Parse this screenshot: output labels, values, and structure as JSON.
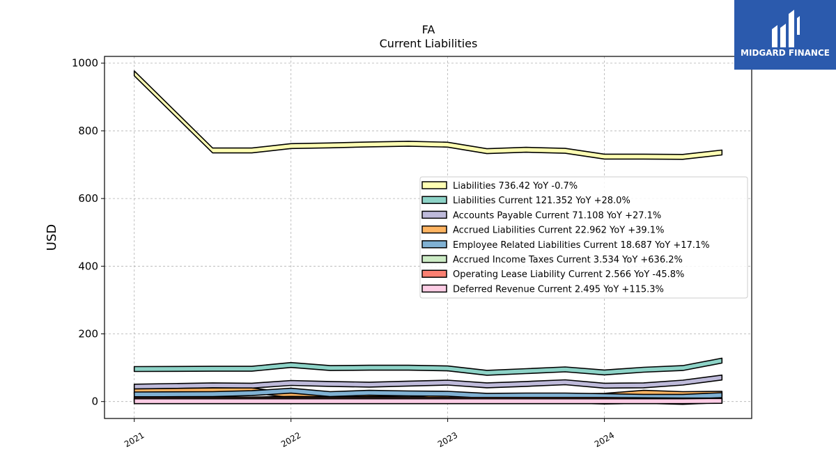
{
  "logo": {
    "text": "MIDGARD FINANCE"
  },
  "chart_data": {
    "type": "area",
    "title": "FA",
    "subtitle": "Current  Liabilities",
    "ylabel": "USD",
    "xlabel": "",
    "ylim": [
      -50,
      1020
    ],
    "xlim": [
      2020.81,
      2024.94
    ],
    "yticks": [
      0,
      200,
      400,
      600,
      800,
      1000
    ],
    "xticks": [
      {
        "value": 2021.0,
        "label": "2021"
      },
      {
        "value": 2022.0,
        "label": "2022"
      },
      {
        "value": 2023.0,
        "label": "2023"
      },
      {
        "value": 2024.0,
        "label": "2024"
      }
    ],
    "grid": true,
    "legend_placement": "center-right",
    "x": [
      2021.0,
      2021.5,
      2021.75,
      2022.0,
      2022.25,
      2022.5,
      2022.75,
      2023.0,
      2023.25,
      2023.5,
      2023.75,
      2024.0,
      2024.25,
      2024.5,
      2024.75
    ],
    "series": [
      {
        "name": "Liabilities",
        "legend": "Liabilities  736.42 YoY -0.7%",
        "color": "#ffffb3",
        "values": [
          970,
          742,
          742,
          755,
          757,
          760,
          762,
          759,
          740,
          744,
          741,
          724,
          724,
          723,
          736
        ]
      },
      {
        "name": "Liabilities Current",
        "legend": "Liabilities Current  121.352 YoY +28.0%",
        "color": "#8dd3c7",
        "values": [
          96,
          97,
          97,
          108,
          99,
          100,
          100,
          98,
          85,
          90,
          95,
          86,
          94,
          99,
          121
        ]
      },
      {
        "name": "Accounts Payable Current",
        "legend": "Accounts Payable Current  71.108 YoY +27.1%",
        "color": "#bebada",
        "values": [
          44,
          48,
          47,
          55,
          52,
          50,
          53,
          56,
          48,
          52,
          57,
          47,
          48,
          56,
          71
        ]
      },
      {
        "name": "Accrued Liabilities Current",
        "legend": "Accrued Liabilities Current  22.962 YoY +39.1%",
        "color": "#fdb462",
        "values": [
          30,
          33,
          33,
          19,
          20,
          22,
          23,
          16,
          14,
          14,
          15,
          17,
          26,
          22,
          23
        ]
      },
      {
        "name": "Employee Related Liabilities Current",
        "legend": "Employee Related Liabilities Current  18.687 YoY +17.1%",
        "color": "#80b1d3",
        "values": [
          21,
          22,
          25,
          32,
          22,
          26,
          24,
          23,
          17,
          18,
          18,
          16,
          14,
          14,
          19
        ]
      },
      {
        "name": "Accrued Income Taxes Current",
        "legend": "Accrued Income Taxes Current  3.534 YoY +636.2%",
        "color": "#ccebc5",
        "values": [
          7,
          6,
          6,
          8,
          7,
          6,
          5,
          5,
          3,
          4,
          3,
          0,
          2,
          -1,
          4
        ]
      },
      {
        "name": "Operating Lease Liability Current",
        "legend": "Operating Lease Liability Current  2.566 YoY -45.8%",
        "color": "#fb8072",
        "values": [
          5,
          5,
          5,
          5,
          5,
          5,
          5,
          5,
          5,
          5,
          5,
          5,
          4,
          3,
          3
        ]
      },
      {
        "name": "Deferred Revenue Current",
        "legend": "Deferred Revenue Current  2.495 YoY +115.3%",
        "color": "#fccde5",
        "values": [
          1,
          1,
          1,
          1,
          1,
          1,
          1,
          1,
          1,
          1,
          1,
          1,
          1,
          1,
          2
        ]
      }
    ]
  }
}
